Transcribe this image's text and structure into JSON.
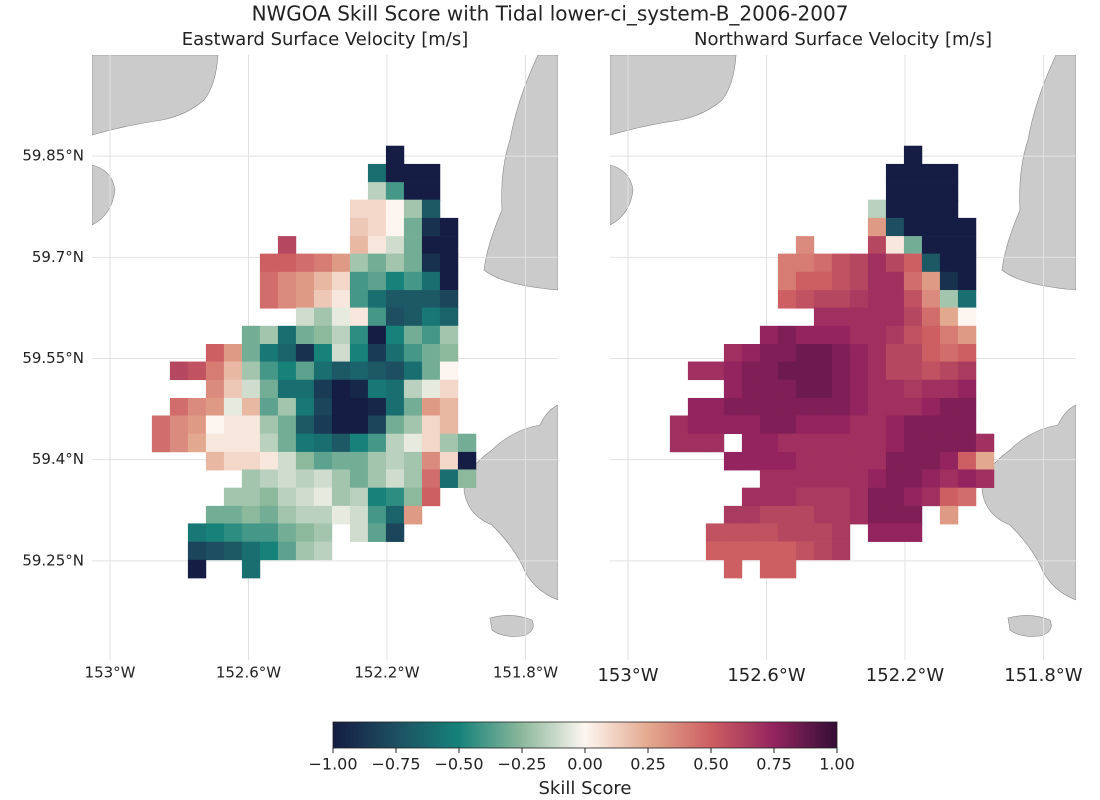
{
  "title": "NWGOA Skill Score with Tidal lower-ci_system-B_2006-2007",
  "chart_data": [
    {
      "type": "heatmap",
      "title": "Eastward Surface Velocity [m/s]",
      "xlim": [
        -153.052,
        -151.706
      ],
      "ylim": [
        59.103,
        60.0
      ],
      "xticks": [
        {
          "value": -153,
          "label": "153°W"
        },
        {
          "value": -152.6,
          "label": "152.6°W"
        },
        {
          "value": -152.2,
          "label": "152.2°W"
        },
        {
          "value": -151.8,
          "label": "151.8°W"
        }
      ],
      "yticks": [
        {
          "value": 59.25,
          "label": "59.25°N"
        },
        {
          "value": 59.4,
          "label": "59.4°N"
        },
        {
          "value": 59.55,
          "label": "59.55°N"
        },
        {
          "value": 59.7,
          "label": "59.7°N"
        },
        {
          "value": 59.85,
          "label": "59.85°N"
        }
      ],
      "grid": true,
      "x": [
        -152.853,
        -152.801,
        -152.749,
        -152.697,
        -152.645,
        -152.593,
        -152.541,
        -152.489,
        -152.437,
        -152.385,
        -152.333,
        -152.281,
        -152.229,
        -152.177,
        -152.125,
        -152.073,
        -152.021,
        -151.969
      ],
      "y": [
        59.852,
        59.825,
        59.798,
        59.772,
        59.745,
        59.718,
        59.692,
        59.665,
        59.638,
        59.612,
        59.585,
        59.558,
        59.532,
        59.505,
        59.478,
        59.452,
        59.425,
        59.398,
        59.372,
        59.345,
        59.318,
        59.292,
        59.265,
        59.238
      ],
      "z": [
        [
          null,
          null,
          null,
          null,
          null,
          null,
          null,
          null,
          null,
          null,
          null,
          null,
          null,
          -1,
          null,
          null,
          null,
          null
        ],
        [
          null,
          null,
          null,
          null,
          null,
          null,
          null,
          null,
          null,
          null,
          null,
          null,
          -0.6,
          -1,
          -1,
          -1,
          null,
          null
        ],
        [
          null,
          null,
          null,
          null,
          null,
          null,
          null,
          null,
          null,
          null,
          null,
          null,
          -0.15,
          -0.4,
          -1,
          -1,
          null,
          null
        ],
        [
          null,
          null,
          null,
          null,
          null,
          null,
          null,
          null,
          null,
          null,
          null,
          0.1,
          0.1,
          0,
          -0.2,
          -0.7,
          null,
          null
        ],
        [
          null,
          null,
          null,
          null,
          null,
          null,
          null,
          null,
          null,
          null,
          null,
          0.15,
          0.1,
          0,
          -0.3,
          -0.9,
          -1,
          null
        ],
        [
          null,
          null,
          null,
          null,
          null,
          null,
          null,
          0.6,
          null,
          null,
          null,
          0.2,
          0.05,
          -0.1,
          -0.3,
          -1,
          -1,
          null
        ],
        [
          null,
          null,
          null,
          null,
          null,
          null,
          0.5,
          0.5,
          0.45,
          0.4,
          0.3,
          -0.2,
          -0.3,
          -0.2,
          -0.3,
          -0.9,
          -1,
          null
        ],
        [
          null,
          null,
          null,
          null,
          null,
          null,
          0.45,
          0.35,
          0.3,
          0.2,
          0.1,
          -0.4,
          -0.35,
          -0.5,
          -0.4,
          -0.6,
          -1,
          null
        ],
        [
          null,
          null,
          null,
          null,
          null,
          null,
          0.45,
          0.35,
          0.3,
          0.15,
          0.05,
          -0.4,
          -0.6,
          -0.7,
          -0.7,
          -0.7,
          -0.8,
          null
        ],
        [
          null,
          null,
          null,
          null,
          null,
          null,
          null,
          null,
          -0.1,
          -0.2,
          -0.05,
          0.05,
          -0.4,
          -0.75,
          -0.7,
          -0.55,
          -0.65,
          null
        ],
        [
          null,
          null,
          null,
          null,
          null,
          -0.3,
          -0.2,
          -0.6,
          -0.3,
          -0.25,
          -0.15,
          -0.45,
          -1,
          -0.5,
          -0.3,
          -0.4,
          -0.2,
          null
        ],
        [
          null,
          null,
          null,
          0.5,
          0.3,
          -0.3,
          -0.55,
          -0.65,
          -0.9,
          -0.5,
          -0.1,
          -0.5,
          -0.85,
          -0.6,
          -0.4,
          -0.3,
          -0.25,
          null
        ],
        [
          null,
          0.6,
          0.55,
          0.4,
          0.2,
          -0.2,
          -0.4,
          -0.5,
          -0.35,
          -0.6,
          -0.7,
          -0.65,
          -0.7,
          -0.75,
          -0.6,
          -0.3,
          0,
          null
        ],
        [
          null,
          null,
          null,
          0.35,
          0.15,
          -0.1,
          -0.3,
          -0.6,
          -0.6,
          -0.85,
          -1,
          -0.95,
          -0.55,
          -0.6,
          -0.15,
          -0.05,
          0.1,
          null
        ],
        [
          null,
          0.45,
          0.35,
          0.3,
          -0.05,
          0.2,
          -0.35,
          -0.2,
          -0.55,
          -0.8,
          -1,
          -1,
          -0.95,
          -0.6,
          -0.3,
          0.3,
          0.2,
          null
        ],
        [
          0.45,
          0.35,
          0.3,
          0,
          0.05,
          0.05,
          -0.2,
          -0.3,
          -0.7,
          -0.85,
          -1,
          -1,
          -0.8,
          -0.3,
          -0.2,
          0.1,
          0.2,
          null
        ],
        [
          0.45,
          0.35,
          0.25,
          0.05,
          0.05,
          0.05,
          -0.15,
          -0.3,
          -0.55,
          -0.6,
          -0.7,
          -0.5,
          -0.4,
          -0.15,
          -0.05,
          0.1,
          -0.2,
          -0.3
        ],
        [
          null,
          null,
          null,
          0.2,
          0.1,
          0.1,
          0.05,
          -0.1,
          -0.25,
          -0.35,
          -0.3,
          -0.3,
          -0.2,
          -0.15,
          -0.2,
          0.35,
          0.1,
          -1
        ],
        [
          null,
          null,
          null,
          null,
          null,
          -0.2,
          -0.15,
          -0.1,
          -0.15,
          -0.1,
          -0.2,
          -0.3,
          -0.2,
          -0.1,
          -0.2,
          0.45,
          -0.6,
          -0.25
        ],
        [
          null,
          null,
          null,
          null,
          -0.2,
          -0.2,
          -0.25,
          -0.15,
          -0.1,
          -0.05,
          -0.2,
          -0.15,
          -0.5,
          -0.45,
          -0.25,
          0.5,
          null,
          null
        ],
        [
          null,
          null,
          null,
          -0.3,
          -0.3,
          -0.25,
          -0.3,
          -0.2,
          -0.15,
          -0.15,
          -0.05,
          -0.1,
          -0.4,
          -0.65,
          0.3,
          null,
          null,
          null
        ],
        [
          null,
          null,
          -0.55,
          -0.5,
          -0.45,
          -0.4,
          -0.4,
          -0.3,
          -0.25,
          -0.2,
          null,
          -0.1,
          -0.35,
          -0.8,
          null,
          null,
          null,
          null
        ],
        [
          null,
          null,
          -0.8,
          -0.75,
          -0.7,
          -0.6,
          -0.5,
          -0.35,
          -0.2,
          -0.15,
          null,
          null,
          null,
          null,
          null,
          null,
          null,
          null
        ],
        [
          null,
          null,
          -1,
          null,
          null,
          -0.6,
          null,
          null,
          null,
          null,
          null,
          null,
          null,
          null,
          null,
          null,
          null,
          null
        ]
      ]
    },
    {
      "type": "heatmap",
      "title": "Northward Surface Velocity [m/s]",
      "xlim": [
        -153.052,
        -151.706
      ],
      "ylim": [
        59.103,
        60.0
      ],
      "xticks": [
        {
          "value": -153,
          "label": "153°W"
        },
        {
          "value": -152.6,
          "label": "152.6°W"
        },
        {
          "value": -152.2,
          "label": "152.2°W"
        },
        {
          "value": -151.8,
          "label": "151.8°W"
        }
      ],
      "yticks": [
        59.25,
        59.4,
        59.55,
        59.7,
        59.85
      ],
      "show_ytick_labels": false,
      "grid": true,
      "x": [
        -152.853,
        -152.801,
        -152.749,
        -152.697,
        -152.645,
        -152.593,
        -152.541,
        -152.489,
        -152.437,
        -152.385,
        -152.333,
        -152.281,
        -152.229,
        -152.177,
        -152.125,
        -152.073,
        -152.021,
        -151.969
      ],
      "y": [
        59.852,
        59.825,
        59.798,
        59.772,
        59.745,
        59.718,
        59.692,
        59.665,
        59.638,
        59.612,
        59.585,
        59.558,
        59.532,
        59.505,
        59.478,
        59.452,
        59.425,
        59.398,
        59.372,
        59.345,
        59.318,
        59.292,
        59.265,
        59.238
      ],
      "z": [
        [
          null,
          null,
          null,
          null,
          null,
          null,
          null,
          null,
          null,
          null,
          null,
          null,
          null,
          -1,
          null,
          null,
          null,
          null
        ],
        [
          null,
          null,
          null,
          null,
          null,
          null,
          null,
          null,
          null,
          null,
          null,
          null,
          -1,
          -1,
          -1,
          -1,
          null,
          null
        ],
        [
          null,
          null,
          null,
          null,
          null,
          null,
          null,
          null,
          null,
          null,
          null,
          null,
          -1,
          -1,
          -1,
          -1,
          null,
          null
        ],
        [
          null,
          null,
          null,
          null,
          null,
          null,
          null,
          null,
          null,
          null,
          null,
          -0.15,
          -1,
          -1,
          -1,
          -1,
          null,
          null
        ],
        [
          null,
          null,
          null,
          null,
          null,
          null,
          null,
          null,
          null,
          null,
          null,
          0.3,
          -0.75,
          -1,
          -1,
          -1,
          -1,
          null
        ],
        [
          null,
          null,
          null,
          null,
          null,
          null,
          null,
          0.35,
          null,
          null,
          null,
          0.6,
          0.05,
          -0.3,
          -1,
          -1,
          -1,
          null
        ],
        [
          null,
          null,
          null,
          null,
          null,
          null,
          0.4,
          0.4,
          0.45,
          0.55,
          0.6,
          0.7,
          0.6,
          0.5,
          -0.7,
          -1,
          -1,
          null
        ],
        [
          null,
          null,
          null,
          null,
          null,
          null,
          0.4,
          0.5,
          0.5,
          0.55,
          0.6,
          0.7,
          0.7,
          0.45,
          0.3,
          -0.9,
          -1,
          null
        ],
        [
          null,
          null,
          null,
          null,
          null,
          null,
          0.5,
          0.55,
          0.6,
          0.6,
          0.65,
          0.7,
          0.7,
          0.55,
          0.35,
          -0.2,
          -0.6,
          null
        ],
        [
          null,
          null,
          null,
          null,
          null,
          null,
          null,
          null,
          0.7,
          0.7,
          0.7,
          0.7,
          0.7,
          0.6,
          0.45,
          0.25,
          0,
          null
        ],
        [
          null,
          null,
          null,
          null,
          null,
          0.75,
          0.8,
          0.75,
          0.75,
          0.75,
          0.7,
          0.7,
          0.65,
          0.55,
          0.5,
          0.4,
          0.3,
          null
        ],
        [
          null,
          null,
          null,
          0.7,
          0.75,
          0.8,
          0.8,
          0.85,
          0.85,
          0.8,
          0.75,
          0.7,
          0.6,
          0.6,
          0.5,
          0.45,
          0.5,
          null
        ],
        [
          null,
          0.7,
          0.7,
          0.75,
          0.8,
          0.8,
          0.85,
          0.85,
          0.85,
          0.8,
          0.75,
          0.7,
          0.6,
          0.6,
          0.55,
          0.6,
          0.65,
          null
        ],
        [
          null,
          null,
          null,
          0.75,
          0.8,
          0.8,
          0.8,
          0.85,
          0.85,
          0.8,
          0.75,
          0.7,
          0.7,
          0.65,
          0.7,
          0.7,
          0.75,
          null
        ],
        [
          null,
          0.75,
          0.75,
          0.8,
          0.8,
          0.8,
          0.8,
          0.8,
          0.8,
          0.8,
          0.75,
          0.7,
          0.7,
          0.7,
          0.75,
          0.8,
          0.8,
          null
        ],
        [
          0.7,
          0.75,
          0.75,
          0.75,
          0.75,
          0.8,
          0.8,
          0.75,
          0.75,
          0.75,
          0.7,
          0.7,
          0.75,
          0.8,
          0.8,
          0.8,
          0.8,
          null
        ],
        [
          0.7,
          0.7,
          0.7,
          null,
          0.75,
          0.75,
          0.7,
          0.7,
          0.7,
          0.7,
          0.7,
          0.7,
          0.75,
          0.8,
          0.8,
          0.8,
          0.8,
          0.7
        ],
        [
          null,
          null,
          null,
          0.75,
          0.75,
          0.75,
          0.75,
          0.7,
          0.7,
          0.7,
          0.7,
          0.7,
          0.8,
          0.8,
          0.8,
          0.75,
          0.5,
          0.25
        ],
        [
          null,
          null,
          null,
          null,
          null,
          0.7,
          0.7,
          0.7,
          0.7,
          0.7,
          0.7,
          0.75,
          0.8,
          0.8,
          0.75,
          0.7,
          0.75,
          0.7
        ],
        [
          null,
          null,
          null,
          null,
          0.7,
          0.7,
          0.7,
          0.65,
          0.65,
          0.65,
          0.7,
          0.8,
          0.8,
          0.75,
          0.7,
          0.5,
          0.45,
          null
        ],
        [
          null,
          null,
          null,
          0.65,
          0.65,
          0.6,
          0.6,
          0.6,
          0.65,
          0.65,
          0.7,
          0.8,
          0.8,
          0.8,
          null,
          0.3,
          null,
          null
        ],
        [
          null,
          null,
          0.55,
          0.55,
          0.55,
          0.55,
          0.6,
          0.6,
          0.6,
          0.65,
          null,
          0.75,
          0.75,
          0.75,
          null,
          null,
          null,
          null
        ],
        [
          null,
          null,
          0.5,
          0.5,
          0.5,
          0.5,
          0.5,
          0.55,
          0.6,
          0.65,
          null,
          null,
          null,
          null,
          null,
          null,
          null,
          null
        ],
        [
          null,
          null,
          null,
          0.5,
          null,
          0.5,
          0.5,
          null,
          null,
          null,
          null,
          null,
          null,
          null,
          null,
          null,
          null,
          null
        ]
      ]
    }
  ],
  "colorbar": {
    "label": "Skill Score",
    "clim": [
      -1,
      1
    ],
    "colorscale": [
      "#151d44",
      "#1d4f60",
      "#16827a",
      "#8cb89c",
      "#fdf6f0",
      "#e3a98f",
      "#cd5e61",
      "#93245f",
      "#340d35"
    ],
    "ticks": [
      {
        "value": -1,
        "label": "−1.00"
      },
      {
        "value": -0.75,
        "label": "−0.75"
      },
      {
        "value": -0.5,
        "label": "−0.50"
      },
      {
        "value": -0.25,
        "label": "−0.25"
      },
      {
        "value": 0,
        "label": "0.00"
      },
      {
        "value": 0.25,
        "label": "0.25"
      },
      {
        "value": 0.5,
        "label": "0.50"
      },
      {
        "value": 0.75,
        "label": "0.75"
      },
      {
        "value": 1,
        "label": "1.00"
      }
    ]
  }
}
